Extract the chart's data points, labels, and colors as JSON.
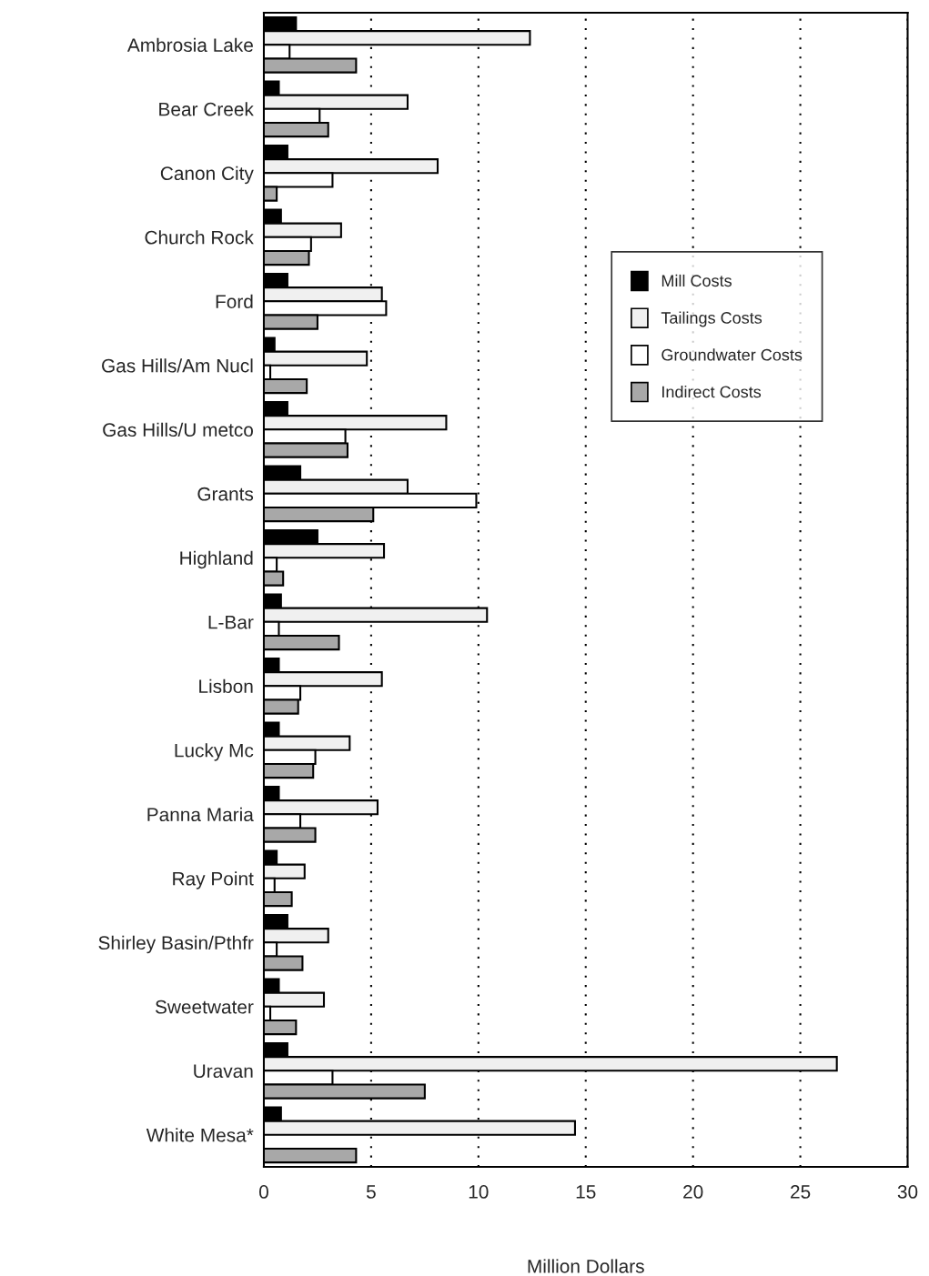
{
  "chart_data": {
    "type": "bar",
    "orientation": "horizontal",
    "xlabel": "Million Dollars",
    "categories": [
      "Ambrosia Lake",
      "Bear Creek",
      "Canon City",
      "Church Rock",
      "Ford",
      "Gas Hills/Am Nucl",
      "Gas Hills/U metco",
      "Grants",
      "Highland",
      "L-Bar",
      "Lisbon",
      "Lucky Mc",
      "Panna Maria",
      "Ray Point",
      "Shirley Basin/Pthfr",
      "Sweetwater",
      "Uravan",
      "White Mesa*"
    ],
    "series": [
      {
        "name": "Mill Costs",
        "color": "#000000",
        "values": [
          1.5,
          0.7,
          1.1,
          0.8,
          1.1,
          0.5,
          1.1,
          1.7,
          2.5,
          0.8,
          0.7,
          0.7,
          0.7,
          0.6,
          1.1,
          0.7,
          1.1,
          0.8
        ]
      },
      {
        "name": "Tailings Costs",
        "color": "#f0f0f0",
        "values": [
          12.4,
          6.7,
          8.1,
          3.6,
          5.5,
          4.8,
          8.5,
          6.7,
          5.6,
          10.4,
          5.5,
          4.0,
          5.3,
          1.9,
          3.0,
          2.8,
          26.7,
          14.5
        ]
      },
      {
        "name": "Groundwater Costs",
        "color": "#ffffff",
        "values": [
          1.2,
          2.6,
          3.2,
          2.2,
          5.7,
          0.3,
          3.8,
          9.9,
          0.6,
          0.7,
          1.7,
          2.4,
          1.7,
          0.5,
          0.6,
          0.3,
          3.2,
          null
        ]
      },
      {
        "name": "Indirect Costs",
        "color": "#a8a8a8",
        "values": [
          4.3,
          3.0,
          0.6,
          2.1,
          2.5,
          2.0,
          3.9,
          5.1,
          0.9,
          3.5,
          1.6,
          2.3,
          2.4,
          1.3,
          1.8,
          1.5,
          7.5,
          4.3
        ]
      }
    ],
    "xlim": [
      0,
      30
    ],
    "xticks": [
      0,
      5,
      10,
      15,
      20,
      25,
      30
    ],
    "grid": "x",
    "legend": "top right"
  }
}
